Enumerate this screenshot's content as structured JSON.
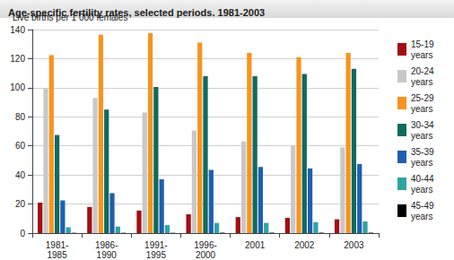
{
  "chart_data": {
    "type": "bar",
    "title": "Age-specific fertility rates, selected periods. 1981-2003",
    "y_label": "Live births per 1 000 females",
    "categories": [
      "1981-1985",
      "1986-1990",
      "1991-1995",
      "1996-2000",
      "2001",
      "2002",
      "2003"
    ],
    "series": [
      {
        "name": "15-19 years",
        "color": "#a30d12",
        "values": [
          21,
          18,
          15.5,
          13,
          11,
          10.5,
          9.5
        ]
      },
      {
        "name": "20-24 years",
        "color": "#c8c8c8",
        "values": [
          99.5,
          93,
          83,
          70.5,
          63,
          60,
          59
        ]
      },
      {
        "name": "25-29 years",
        "color": "#f7941d",
        "values": [
          122.5,
          136.5,
          137.5,
          131,
          124,
          121,
          124
        ]
      },
      {
        "name": "30-34 years",
        "color": "#0f6a60",
        "values": [
          67.5,
          85,
          100.5,
          108,
          108,
          109.5,
          113
        ]
      },
      {
        "name": "35-39 years",
        "color": "#1f5fae",
        "values": [
          22.5,
          27.5,
          37,
          43.5,
          45.5,
          44.5,
          47.5
        ]
      },
      {
        "name": "40-44 years",
        "color": "#2fa3a3",
        "values": [
          4,
          4.5,
          5.5,
          7,
          7,
          7.5,
          8
        ]
      },
      {
        "name": "45-49 years",
        "color": "#000000",
        "values": [
          0.2,
          0.2,
          0.2,
          0.3,
          0.3,
          0.3,
          0.3
        ]
      }
    ],
    "ylim": [
      0,
      140
    ],
    "yticks": [
      0,
      20,
      40,
      60,
      80,
      100,
      120,
      140
    ],
    "grid": true,
    "legend": "right"
  }
}
